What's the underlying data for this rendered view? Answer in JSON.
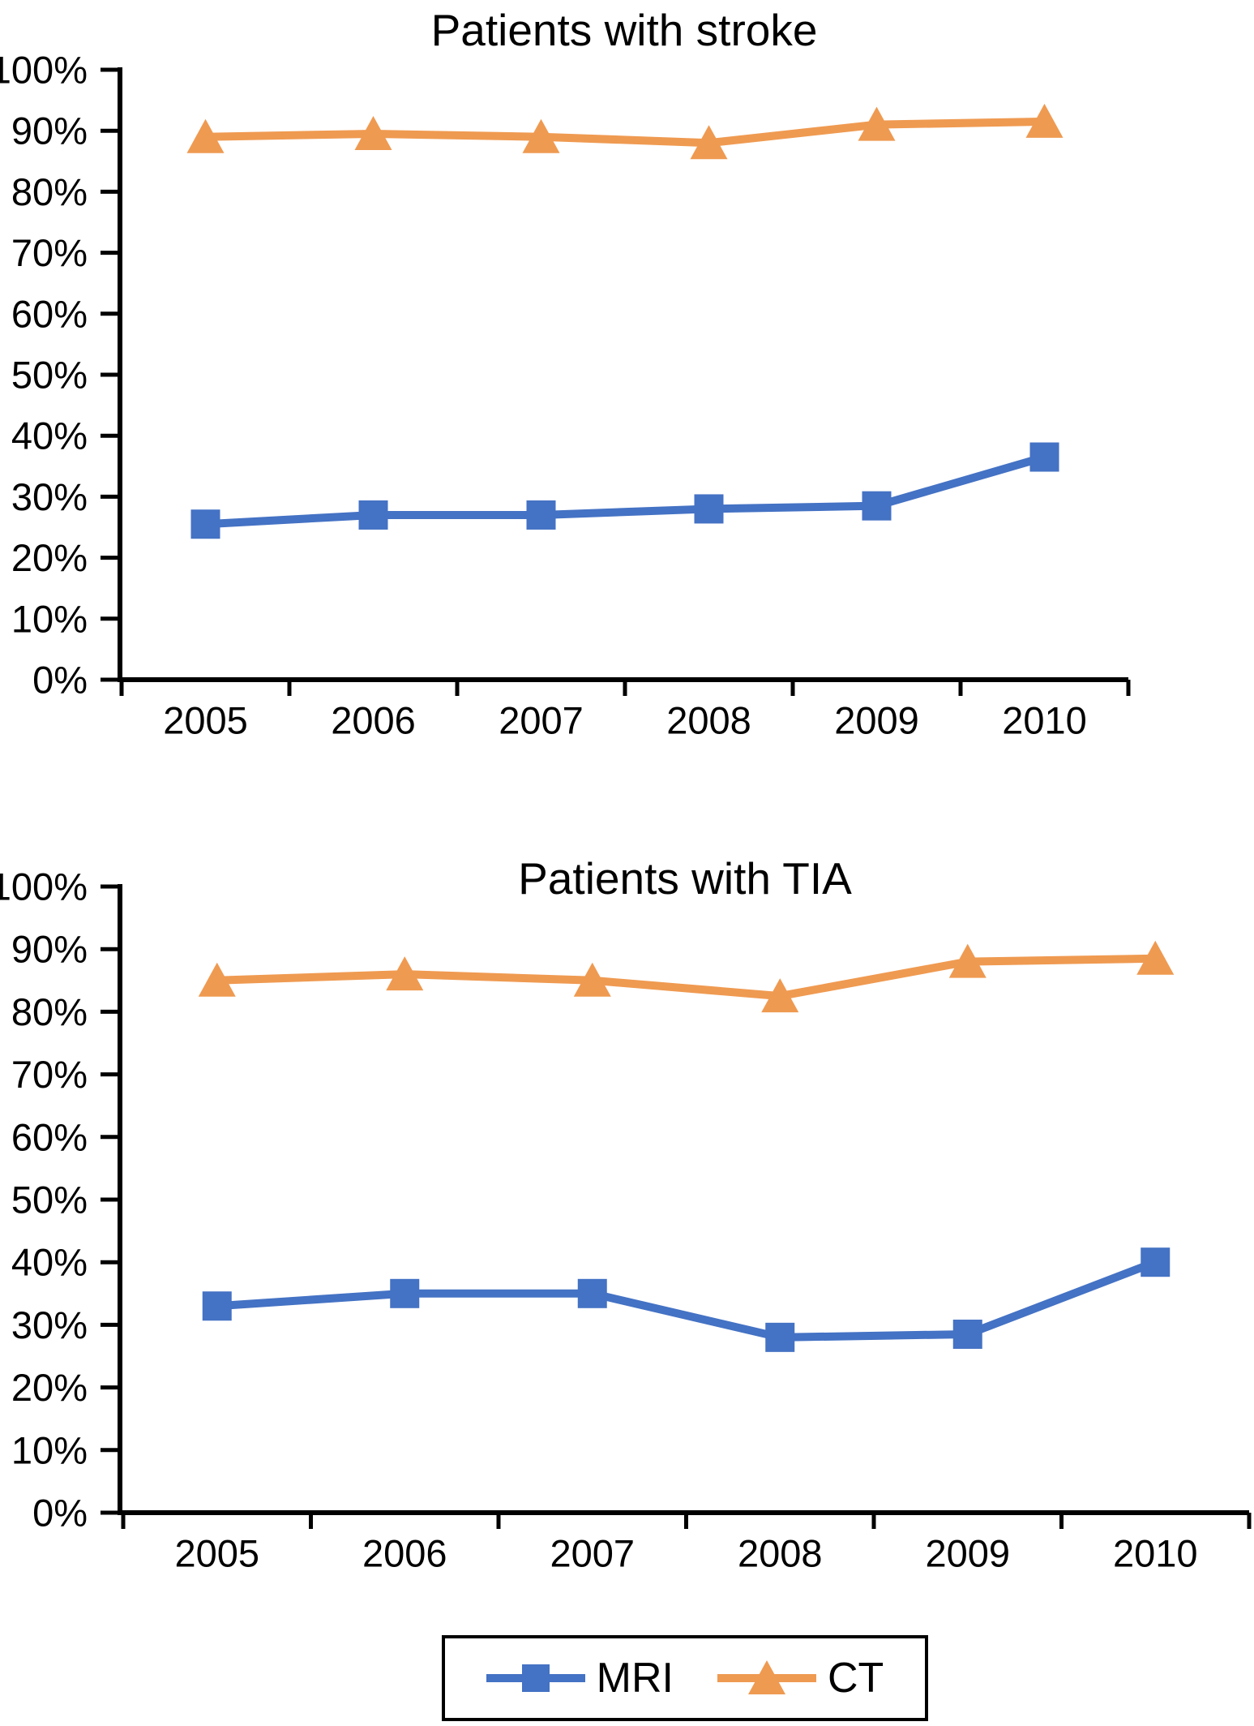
{
  "figure": {
    "background": "#ffffff",
    "axis_color": "#000000"
  },
  "chart_data": [
    {
      "type": "line",
      "title": "Patients with stroke",
      "categories": [
        "2005",
        "2006",
        "2007",
        "2008",
        "2009",
        "2010"
      ],
      "y_tick_labels": [
        "0%",
        "10%",
        "20%",
        "30%",
        "40%",
        "50%",
        "60%",
        "70%",
        "80%",
        "90%",
        "100%"
      ],
      "ylim": [
        0,
        100
      ],
      "grid": false,
      "series": [
        {
          "name": "MRI",
          "marker": "square",
          "color": "#4472C4",
          "values": [
            25.5,
            27,
            27,
            28,
            28.5,
            36.5
          ]
        },
        {
          "name": "CT",
          "marker": "triangle",
          "color": "#EF9A51",
          "values": [
            89,
            89.5,
            89,
            88,
            91,
            91.5
          ]
        }
      ]
    },
    {
      "type": "line",
      "title": "Patients with TIA",
      "categories": [
        "2005",
        "2006",
        "2007",
        "2008",
        "2009",
        "2010"
      ],
      "y_tick_labels": [
        "0%",
        "10%",
        "20%",
        "30%",
        "40%",
        "50%",
        "60%",
        "70%",
        "80%",
        "90%",
        "100%"
      ],
      "ylim": [
        0,
        100
      ],
      "grid": false,
      "series": [
        {
          "name": "MRI",
          "marker": "square",
          "color": "#4472C4",
          "values": [
            33,
            35,
            35,
            28,
            28.5,
            40
          ]
        },
        {
          "name": "CT",
          "marker": "triangle",
          "color": "#EF9A51",
          "values": [
            85,
            86,
            85,
            82.5,
            88,
            88.5
          ]
        }
      ]
    }
  ],
  "legend": {
    "position": "bottom-center",
    "items": [
      {
        "label": "MRI",
        "color": "#4472C4",
        "marker": "square"
      },
      {
        "label": "CT",
        "color": "#EF9A51",
        "marker": "triangle"
      }
    ]
  }
}
